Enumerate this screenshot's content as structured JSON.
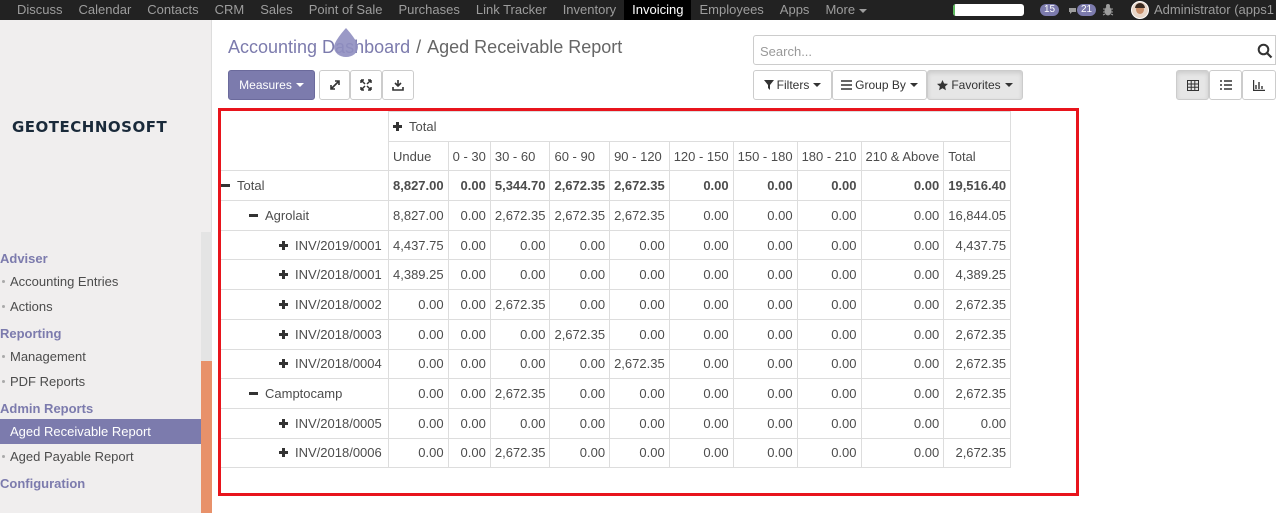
{
  "topbar": {
    "menu": [
      "Discuss",
      "Calendar",
      "Contacts",
      "CRM",
      "Sales",
      "Point of Sale",
      "Purchases",
      "Link Tracker",
      "Inventory",
      "Invoicing",
      "Employees",
      "Apps",
      "More"
    ],
    "active_menu": "Invoicing",
    "progress_fraction": 0.03,
    "progress_color": "#5cb85c",
    "messages_count": "15",
    "chat_count": "21",
    "user_label": "Administrator (apps1"
  },
  "sidebar": {
    "logo_text": "GEOTECHNOSOFT",
    "sections": [
      {
        "title": "Adviser",
        "items": [
          "Accounting Entries",
          "Actions"
        ]
      },
      {
        "title": "Reporting",
        "items": [
          "Management",
          "PDF Reports"
        ]
      },
      {
        "title": "Admin Reports",
        "items": [
          "Aged Receivable Report",
          "Aged Payable Report"
        ]
      },
      {
        "title": "Configuration",
        "items": []
      }
    ],
    "active_item": "Aged Receivable Report"
  },
  "control_panel": {
    "breadcrumb_parent": "Accounting Dashboard",
    "breadcrumb_sep": "/",
    "breadcrumb_current": "Aged Receivable Report",
    "measures_label": "Measures",
    "search_placeholder": "Search...",
    "filters_label": "Filters",
    "groupby_label": "Group By",
    "favorites_label": "Favorites"
  },
  "pivot": {
    "col_group_label": "Total",
    "columns": [
      "Undue",
      "0 - 30",
      "30 - 60",
      "60 - 90",
      "90 - 120",
      "120 - 150",
      "150 - 180",
      "180 - 210",
      "210 & Above",
      "Total"
    ],
    "rows": [
      {
        "label": "Total",
        "level": 0,
        "sign": "minus",
        "bold": true,
        "values": [
          "8,827.00",
          "0.00",
          "5,344.70",
          "2,672.35",
          "2,672.35",
          "0.00",
          "0.00",
          "0.00",
          "0.00",
          "19,516.40"
        ]
      },
      {
        "label": "Agrolait",
        "level": 1,
        "sign": "minus",
        "values": [
          "8,827.00",
          "0.00",
          "2,672.35",
          "2,672.35",
          "2,672.35",
          "0.00",
          "0.00",
          "0.00",
          "0.00",
          "16,844.05"
        ]
      },
      {
        "label": "INV/2019/0001",
        "level": 2,
        "sign": "plus",
        "values": [
          "4,437.75",
          "0.00",
          "0.00",
          "0.00",
          "0.00",
          "0.00",
          "0.00",
          "0.00",
          "0.00",
          "4,437.75"
        ]
      },
      {
        "label": "INV/2018/0001",
        "level": 2,
        "sign": "plus",
        "values": [
          "4,389.25",
          "0.00",
          "0.00",
          "0.00",
          "0.00",
          "0.00",
          "0.00",
          "0.00",
          "0.00",
          "4,389.25"
        ]
      },
      {
        "label": "INV/2018/0002",
        "level": 2,
        "sign": "plus",
        "values": [
          "0.00",
          "0.00",
          "2,672.35",
          "0.00",
          "0.00",
          "0.00",
          "0.00",
          "0.00",
          "0.00",
          "2,672.35"
        ]
      },
      {
        "label": "INV/2018/0003",
        "level": 2,
        "sign": "plus",
        "values": [
          "0.00",
          "0.00",
          "0.00",
          "2,672.35",
          "0.00",
          "0.00",
          "0.00",
          "0.00",
          "0.00",
          "2,672.35"
        ]
      },
      {
        "label": "INV/2018/0004",
        "level": 2,
        "sign": "plus",
        "values": [
          "0.00",
          "0.00",
          "0.00",
          "0.00",
          "2,672.35",
          "0.00",
          "0.00",
          "0.00",
          "0.00",
          "2,672.35"
        ]
      },
      {
        "label": "Camptocamp",
        "level": 1,
        "sign": "minus",
        "values": [
          "0.00",
          "0.00",
          "2,672.35",
          "0.00",
          "0.00",
          "0.00",
          "0.00",
          "0.00",
          "0.00",
          "2,672.35"
        ]
      },
      {
        "label": "INV/2018/0005",
        "level": 2,
        "sign": "plus",
        "values": [
          "0.00",
          "0.00",
          "0.00",
          "0.00",
          "0.00",
          "0.00",
          "0.00",
          "0.00",
          "0.00",
          "0.00"
        ]
      },
      {
        "label": "INV/2018/0006",
        "level": 2,
        "sign": "plus",
        "values": [
          "0.00",
          "0.00",
          "2,672.35",
          "0.00",
          "0.00",
          "0.00",
          "0.00",
          "0.00",
          "0.00",
          "2,672.35"
        ]
      }
    ]
  },
  "colors": {
    "brand": "#7c7bad",
    "highlight_frame": "#e8141c",
    "topbar": "#222222"
  }
}
